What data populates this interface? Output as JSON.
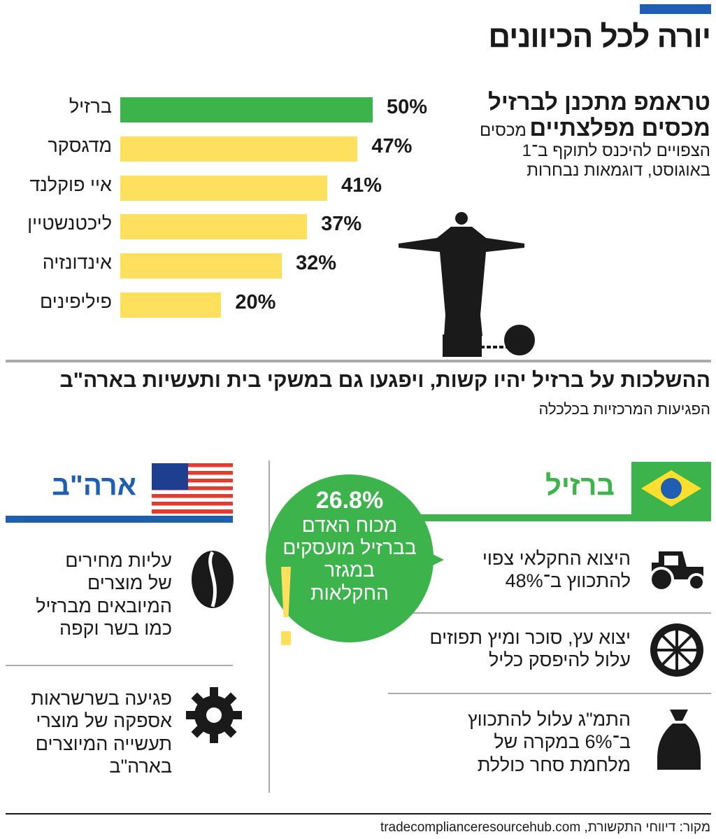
{
  "header": {
    "accent_color": "#1e5fb4",
    "title": "יורה לכל הכיוונים"
  },
  "intro": {
    "headline_line1": "טראמפ מתכנן לברזיל",
    "headline_line2": "מכסים מפלצתיים",
    "body_start": "מכסים",
    "body_line2": "הצפויים להיכנס לתוקף ב־1",
    "body_line3": "באוגוסט, דוגמאות נבחרות"
  },
  "chart_data": {
    "type": "bar",
    "orientation": "horizontal",
    "categories": [
      "ברזיל",
      "מדגסקר",
      "איי פוקלנד",
      "ליכטנשטיין",
      "אינדונזיה",
      "פיליפינים"
    ],
    "values": [
      50,
      47,
      41,
      37,
      32,
      20
    ],
    "value_labels": [
      "50%",
      "47%",
      "41%",
      "37%",
      "32%",
      "20%"
    ],
    "colors": [
      "#3cb44b",
      "#ffdf5e",
      "#ffdf5e",
      "#ffdf5e",
      "#ffdf5e",
      "#ffdf5e"
    ],
    "grid": false
  },
  "impact": {
    "headline": "ההשלכות על ברזיל יהיו קשות, ויפגעו גם במשקי בית ותעשיות בארה\"ב",
    "subtitle": "הפגיעות המרכזיות בכלכלה"
  },
  "brazil": {
    "label": "ברזיל",
    "color": "#3cb44b",
    "items": [
      {
        "icon": "tractor-icon",
        "lines": [
          "היצוא החקלאי צפוי",
          "להתכווץ ב־48%"
        ]
      },
      {
        "icon": "orange-slice-icon",
        "lines": [
          "יצוא עץ, סוכר ומיץ תפוזים",
          "עלול להיפסק כליל"
        ]
      },
      {
        "icon": "money-bag-icon",
        "lines": [
          "התמ\"ג עלול להתכווץ",
          "ב־6% במקרה של",
          "מלחמת סחר כוללת"
        ]
      }
    ]
  },
  "bubble": {
    "value": "26.8%",
    "lines": [
      "מכוח האדם",
      "בברזיל מועסקים",
      "במגזר",
      "החקלאות"
    ]
  },
  "usa": {
    "label": "ארה\"ב",
    "color": "#1e5fb4",
    "items": [
      {
        "icon": "coffee-bean-icon",
        "lines": [
          "עליות מחירים",
          "של מוצרים",
          "המיובאים מברזיל",
          "כמו בשר וקפה"
        ]
      },
      {
        "icon": "gear-icon",
        "lines": [
          "פגיעה בשרשראות",
          "אספקה של מוצרי",
          "תעשייה המיוצרים",
          "בארה\"ב"
        ]
      }
    ]
  },
  "footer": {
    "source": "מקור: דיווחי התקשורת, tradecomplianceresourcehub.com"
  }
}
